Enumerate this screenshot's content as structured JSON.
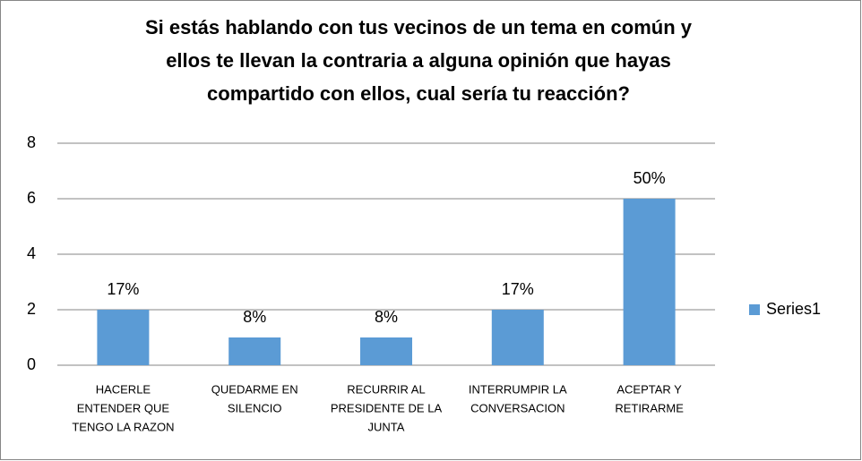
{
  "chart_data": {
    "type": "bar",
    "title": [
      "Si estás hablando con tus vecinos de un tema en común y",
      "ellos te llevan la contraria a alguna opinión que hayas",
      "compartido con ellos, cual sería tu reacción?"
    ],
    "categories": [
      [
        "HACERLE",
        "ENTENDER QUE",
        "TENGO LA RAZON"
      ],
      [
        "QUEDARME EN",
        "SILENCIO"
      ],
      [
        "RECURRIR AL",
        "PRESIDENTE DE LA",
        "JUNTA"
      ],
      [
        "INTERRUMPIR LA",
        "CONVERSACION"
      ],
      [
        "ACEPTAR Y",
        "RETIRARME"
      ]
    ],
    "series": [
      {
        "name": "Series1",
        "color": "#5b9bd5",
        "values": [
          2,
          1,
          1,
          2,
          6
        ],
        "value_labels": [
          "17%",
          "8%",
          "8%",
          "17%",
          "50%"
        ]
      }
    ],
    "ylim": [
      0,
      8
    ],
    "yticks": [
      0,
      2,
      4,
      6,
      8
    ],
    "grid": true,
    "legend": "right"
  }
}
